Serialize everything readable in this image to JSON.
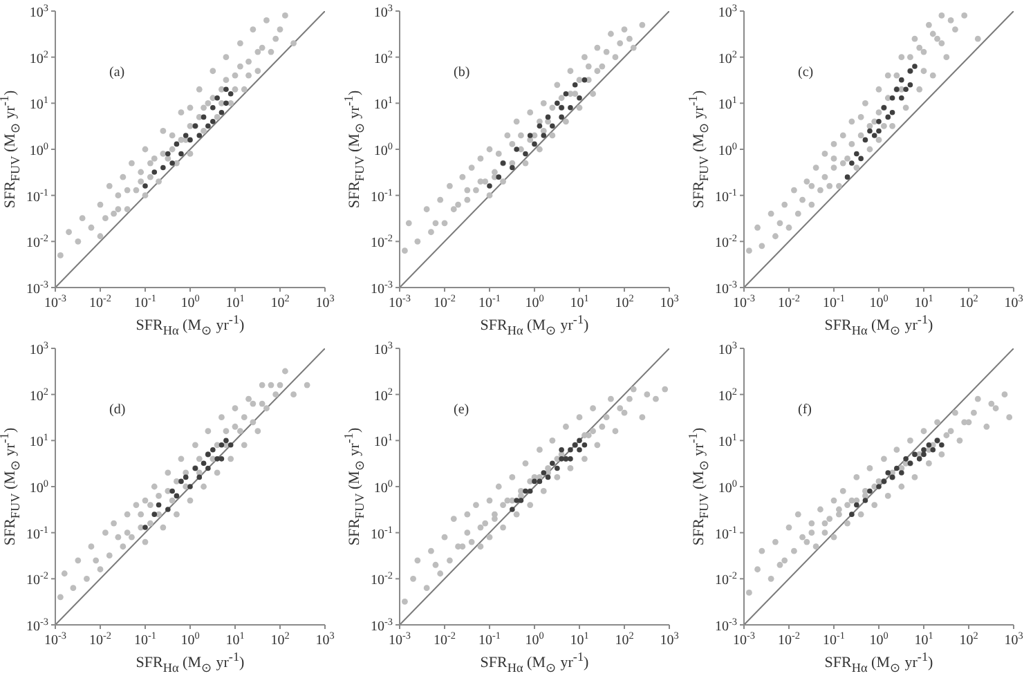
{
  "chart_data": [
    {
      "type": "scatter",
      "xlabel": "SFR$_{Hα}$ (M$_{⊙}$ yr$^{-1}$)",
      "ylabel": "SFR$_{FUV}$ (M$_{⊙}$ yr$^{-1}$)",
      "annotations": [
        "(a)"
      ],
      "log": "xy",
      "xlim": [
        0.001,
        1000
      ],
      "ylim": [
        0.001,
        1000
      ],
      "xticks": [
        {
          "value": 0.001,
          "label": "10$^{-3}$"
        },
        {
          "value": 0.01,
          "label": "10$^{-2}$"
        },
        {
          "value": 0.1,
          "label": "10$^{-1}$"
        },
        {
          "value": 1,
          "label": "10$^{0}$"
        },
        {
          "value": 10,
          "label": "10$^{1}$"
        },
        {
          "value": 100,
          "label": "10$^{2}$"
        },
        {
          "value": 1000,
          "label": "10$^{3}$"
        }
      ],
      "yticks": [
        {
          "value": 0.001,
          "label": "10$^{-3}$"
        },
        {
          "value": 0.01,
          "label": "10$^{-2}$"
        },
        {
          "value": 0.1,
          "label": "10$^{-1}$"
        },
        {
          "value": 1,
          "label": "10$^{0}$"
        },
        {
          "value": 10,
          "label": "10$^{1}$"
        },
        {
          "value": 100,
          "label": "10$^{2}$"
        },
        {
          "value": 1000,
          "label": "10$^{3}$"
        }
      ],
      "marker": "circle",
      "line_style": "solid",
      "series": [
        {
          "color": "#bdbdbd",
          "x": [
            0.0013,
            0.002,
            0.0032,
            0.004,
            0.0063,
            0.01,
            0.01,
            0.016,
            0.02,
            0.025,
            0.032,
            0.04,
            0.05,
            0.063,
            0.08,
            0.1,
            0.1,
            0.13,
            0.16,
            0.2,
            0.25,
            0.32,
            0.4,
            0.5,
            0.63,
            0.8,
            1,
            1,
            1.3,
            1.6,
            2,
            2.5,
            3.2,
            4,
            5,
            6.3,
            8,
            10,
            13,
            16,
            20,
            25,
            32,
            40,
            50,
            80,
            130,
            200,
            0.013,
            0.025,
            0.04,
            0.08,
            0.13,
            0.25,
            0.4,
            0.63,
            1,
            1.6,
            2,
            3.2,
            5,
            6.3,
            10,
            13,
            20,
            32,
            63,
            100
          ],
          "values": [
            0.005,
            0.016,
            0.01,
            0.032,
            0.02,
            0.063,
            0.013,
            0.16,
            0.04,
            0.1,
            0.25,
            0.05,
            0.5,
            0.13,
            0.32,
            0.1,
            1,
            0.25,
            0.63,
            0.2,
            2.5,
            0.63,
            2,
            0.5,
            6.3,
            1.6,
            8,
            0.8,
            3.2,
            20,
            2.5,
            10,
            50,
            5,
            20,
            100,
            10,
            40,
            200,
            20,
            80,
            400,
            50,
            160,
            630,
            250,
            800,
            200,
            0.032,
            0.05,
            0.13,
            0.2,
            0.5,
            0.8,
            1,
            1.6,
            3.2,
            5,
            8,
            13,
            10,
            32,
            20,
            63,
            40,
            130,
            130,
            400
          ]
        },
        {
          "color": "#3f3f3f",
          "x": [
            0.1,
            0.16,
            0.25,
            0.32,
            0.4,
            0.5,
            0.63,
            0.8,
            1,
            1.3,
            1.6,
            2,
            2.5,
            3.2,
            3.2,
            4,
            5,
            6.3,
            6.3,
            8
          ],
          "values": [
            0.16,
            0.32,
            0.4,
            0.8,
            0.5,
            1.3,
            0.8,
            2,
            1.6,
            3.2,
            2,
            5,
            3.2,
            8,
            4,
            13,
            6.3,
            20,
            10,
            16
          ]
        },
        {
          "type": "line",
          "marker": "none",
          "color": "#7a7a7a",
          "x": [
            0.001,
            1000
          ],
          "values": [
            0.001,
            1000
          ]
        }
      ]
    },
    {
      "type": "scatter",
      "xlabel": "SFR$_{Hα}$ (M$_{⊙}$ yr$^{-1}$)",
      "ylabel": "SFR$_{FUV}$ (M$_{⊙}$ yr$^{-1}$)",
      "annotations": [
        "(b)"
      ],
      "log": "xy",
      "xlim": [
        0.001,
        1000
      ],
      "ylim": [
        0.001,
        1000
      ],
      "xticks": [
        {
          "value": 0.001,
          "label": "10$^{-3}$"
        },
        {
          "value": 0.01,
          "label": "10$^{-2}$"
        },
        {
          "value": 0.1,
          "label": "10$^{-1}$"
        },
        {
          "value": 1,
          "label": "10$^{0}$"
        },
        {
          "value": 10,
          "label": "10$^{1}$"
        },
        {
          "value": 100,
          "label": "10$^{2}$"
        },
        {
          "value": 1000,
          "label": "10$^{3}$"
        }
      ],
      "yticks": [
        {
          "value": 0.001,
          "label": "10$^{-3}$"
        },
        {
          "value": 0.01,
          "label": "10$^{-2}$"
        },
        {
          "value": 0.1,
          "label": "10$^{-1}$"
        },
        {
          "value": 1,
          "label": "10$^{0}$"
        },
        {
          "value": 10,
          "label": "10$^{1}$"
        },
        {
          "value": 100,
          "label": "10$^{2}$"
        },
        {
          "value": 1000,
          "label": "10$^{3}$"
        }
      ],
      "marker": "circle",
      "line_style": "solid",
      "series": [
        {
          "color": "#bdbdbd",
          "x": [
            0.0013,
            0.0016,
            0.0025,
            0.004,
            0.005,
            0.008,
            0.01,
            0.013,
            0.016,
            0.025,
            0.032,
            0.04,
            0.05,
            0.063,
            0.08,
            0.1,
            0.1,
            0.13,
            0.16,
            0.2,
            0.25,
            0.32,
            0.4,
            0.5,
            0.63,
            0.8,
            1,
            1.3,
            1.6,
            2,
            2.5,
            3.2,
            4,
            5,
            6.3,
            8,
            10,
            13,
            16,
            20,
            25,
            32,
            50,
            63,
            100,
            160,
            250,
            0.0063,
            0.02,
            0.032,
            0.063,
            0.13,
            0.2,
            0.32,
            0.5,
            0.8,
            1.3,
            1.6,
            2.5,
            4,
            6.3,
            10,
            16,
            25,
            40,
            80,
            130
          ],
          "values": [
            0.0063,
            0.025,
            0.01,
            0.05,
            0.016,
            0.08,
            0.025,
            0.16,
            0.05,
            0.25,
            0.08,
            0.4,
            0.13,
            0.63,
            0.2,
            0.1,
            1,
            0.32,
            0.8,
            0.2,
            2,
            0.5,
            4,
            1,
            0.5,
            6.3,
            2,
            1,
            10,
            4,
            2,
            25,
            8,
            4,
            50,
            16,
            8,
            100,
            32,
            16,
            160,
            63,
            320,
            100,
            400,
            160,
            500,
            0.025,
            0.063,
            0.13,
            0.2,
            0.25,
            0.5,
            1.3,
            2,
            1.6,
            4,
            2.5,
            8,
            13,
            16,
            32,
            63,
            50,
            130,
            200,
            250
          ]
        },
        {
          "color": "#3f3f3f",
          "x": [
            0.1,
            0.16,
            0.2,
            0.32,
            0.4,
            0.63,
            0.8,
            1,
            1.3,
            1.6,
            2,
            2.5,
            3.2,
            4,
            5,
            6.3,
            8,
            10,
            13,
            4
          ],
          "values": [
            0.16,
            0.25,
            0.5,
            0.4,
            1,
            0.8,
            2,
            1.3,
            3.2,
            2,
            5,
            3.2,
            10,
            5,
            16,
            8,
            25,
            13,
            32,
            8
          ]
        },
        {
          "type": "line",
          "marker": "none",
          "color": "#7a7a7a",
          "x": [
            0.001,
            1000
          ],
          "values": [
            0.001,
            1000
          ]
        }
      ]
    },
    {
      "type": "scatter",
      "xlabel": "SFR$_{Hα}$ (M$_{⊙}$ yr$^{-1}$)",
      "ylabel": "SFR$_{FUV}$ (M$_{⊙}$ yr$^{-1}$)",
      "annotations": [
        "(c)"
      ],
      "log": "xy",
      "xlim": [
        0.001,
        1000
      ],
      "ylim": [
        0.001,
        1000
      ],
      "xticks": [
        {
          "value": 0.001,
          "label": "10$^{-3}$"
        },
        {
          "value": 0.01,
          "label": "10$^{-2}$"
        },
        {
          "value": 0.1,
          "label": "10$^{-1}$"
        },
        {
          "value": 1,
          "label": "10$^{0}$"
        },
        {
          "value": 10,
          "label": "10$^{1}$"
        },
        {
          "value": 100,
          "label": "10$^{2}$"
        },
        {
          "value": 1000,
          "label": "10$^{3}$"
        }
      ],
      "yticks": [
        {
          "value": 0.001,
          "label": "10$^{-3}$"
        },
        {
          "value": 0.01,
          "label": "10$^{-2}$"
        },
        {
          "value": 0.1,
          "label": "10$^{-1}$"
        },
        {
          "value": 1,
          "label": "10$^{0}$"
        },
        {
          "value": 10,
          "label": "10$^{1}$"
        },
        {
          "value": 100,
          "label": "10$^{2}$"
        },
        {
          "value": 1000,
          "label": "10$^{3}$"
        }
      ],
      "marker": "circle",
      "line_style": "solid",
      "series": [
        {
          "color": "#bdbdbd",
          "x": [
            0.0013,
            0.002,
            0.0025,
            0.004,
            0.005,
            0.008,
            0.01,
            0.013,
            0.016,
            0.025,
            0.032,
            0.04,
            0.05,
            0.063,
            0.08,
            0.1,
            0.1,
            0.13,
            0.16,
            0.2,
            0.25,
            0.32,
            0.4,
            0.5,
            0.63,
            0.8,
            1,
            1,
            1.3,
            1.6,
            2,
            2.5,
            3.2,
            4,
            5,
            6.3,
            8,
            10,
            13,
            16,
            20,
            25,
            32,
            50,
            80,
            160,
            0.0063,
            0.02,
            0.032,
            0.063,
            0.1,
            0.16,
            0.25,
            0.4,
            0.63,
            1,
            1.3,
            1.6,
            2.5,
            3.2,
            5,
            8,
            10,
            16,
            25,
            40
          ],
          "values": [
            0.0063,
            0.02,
            0.008,
            0.04,
            0.013,
            0.063,
            0.02,
            0.13,
            0.04,
            0.2,
            0.063,
            0.4,
            0.13,
            0.8,
            0.16,
            0.4,
            1.3,
            0.16,
            2,
            0.63,
            4,
            0.4,
            2,
            10,
            1,
            4,
            20,
            1.6,
            8,
            40,
            3.2,
            20,
            100,
            8,
            50,
            250,
            20,
            130,
            500,
            40,
            250,
            800,
            100,
            400,
            800,
            250,
            0.025,
            0.08,
            0.16,
            0.25,
            0.63,
            0.5,
            1.3,
            5,
            3.2,
            6.3,
            3.2,
            13,
            40,
            20,
            100,
            160,
            50,
            320,
            200,
            630
          ]
        },
        {
          "color": "#3f3f3f",
          "x": [
            0.2,
            0.25,
            0.32,
            0.4,
            0.5,
            0.63,
            0.8,
            1,
            1,
            1.3,
            1.6,
            2,
            2,
            2.5,
            3.2,
            3.2,
            4,
            5,
            5,
            6.3
          ],
          "values": [
            0.25,
            0.5,
            0.8,
            0.63,
            1.6,
            2.5,
            2,
            4,
            2.5,
            8,
            5,
            13,
            6.3,
            20,
            13,
            32,
            20,
            50,
            25,
            63
          ]
        },
        {
          "type": "line",
          "marker": "none",
          "color": "#7a7a7a",
          "x": [
            0.001,
            1000
          ],
          "values": [
            0.001,
            1000
          ]
        }
      ]
    },
    {
      "type": "scatter",
      "xlabel": "SFR$_{Hα}$ (M$_{⊙}$ yr$^{-1}$)",
      "ylabel": "SFR$_{FUV}$ (M$_{⊙}$ yr$^{-1}$)",
      "annotations": [
        "(d)"
      ],
      "log": "xy",
      "xlim": [
        0.001,
        1000
      ],
      "ylim": [
        0.001,
        1000
      ],
      "xticks": [
        {
          "value": 0.001,
          "label": "10$^{-3}$"
        },
        {
          "value": 0.01,
          "label": "10$^{-2}$"
        },
        {
          "value": 0.1,
          "label": "10$^{-1}$"
        },
        {
          "value": 1,
          "label": "10$^{0}$"
        },
        {
          "value": 10,
          "label": "10$^{1}$"
        },
        {
          "value": 100,
          "label": "10$^{2}$"
        },
        {
          "value": 1000,
          "label": "10$^{3}$"
        }
      ],
      "yticks": [
        {
          "value": 0.001,
          "label": "10$^{-3}$"
        },
        {
          "value": 0.01,
          "label": "10$^{-2}$"
        },
        {
          "value": 0.1,
          "label": "10$^{-1}$"
        },
        {
          "value": 1,
          "label": "10$^{0}$"
        },
        {
          "value": 10,
          "label": "10$^{1}$"
        },
        {
          "value": 100,
          "label": "10$^{2}$"
        },
        {
          "value": 1000,
          "label": "10$^{3}$"
        }
      ],
      "marker": "circle",
      "line_style": "solid",
      "series": [
        {
          "color": "#bdbdbd",
          "x": [
            0.0013,
            0.0016,
            0.0025,
            0.0032,
            0.005,
            0.0063,
            0.01,
            0.013,
            0.016,
            0.02,
            0.032,
            0.04,
            0.05,
            0.063,
            0.08,
            0.1,
            0.1,
            0.13,
            0.16,
            0.2,
            0.25,
            0.32,
            0.4,
            0.5,
            0.63,
            0.8,
            1,
            1.3,
            1.6,
            2,
            2.5,
            3.2,
            4,
            5,
            6.3,
            8,
            10,
            13,
            16,
            20,
            25,
            32,
            40,
            50,
            80,
            130,
            200,
            400,
            0.008,
            0.025,
            0.04,
            0.08,
            0.13,
            0.2,
            0.32,
            0.5,
            0.8,
            1.3,
            1.6,
            2.5,
            4,
            6.3,
            10,
            16,
            25,
            40,
            63,
            100
          ],
          "values": [
            0.004,
            0.013,
            0.0063,
            0.025,
            0.01,
            0.05,
            0.016,
            0.1,
            0.032,
            0.16,
            0.05,
            0.25,
            0.08,
            0.4,
            0.13,
            0.063,
            0.5,
            0.16,
            1,
            0.25,
            0.13,
            2,
            0.5,
            0.25,
            4,
            1,
            0.5,
            8,
            2,
            1,
            16,
            4,
            2,
            32,
            8,
            4,
            50,
            16,
            8,
            80,
            25,
            16,
            160,
            50,
            100,
            320,
            100,
            160,
            0.025,
            0.08,
            0.1,
            0.25,
            0.4,
            0.63,
            0.8,
            1.3,
            2,
            2.5,
            4,
            5,
            8,
            16,
            20,
            32,
            63,
            63,
            160,
            160
          ]
        },
        {
          "color": "#3f3f3f",
          "x": [
            0.1,
            0.16,
            0.2,
            0.32,
            0.4,
            0.5,
            0.63,
            0.8,
            1,
            1.3,
            1.6,
            2,
            2.5,
            3.2,
            4,
            5,
            5,
            6.3,
            8,
            2.5
          ],
          "values": [
            0.13,
            0.25,
            0.4,
            0.32,
            0.8,
            0.63,
            1.3,
            1.6,
            1,
            2.5,
            1.6,
            3.2,
            2.5,
            6.3,
            4,
            8,
            4,
            10,
            8,
            5
          ]
        },
        {
          "type": "line",
          "marker": "none",
          "color": "#7a7a7a",
          "x": [
            0.001,
            1000
          ],
          "values": [
            0.001,
            1000
          ]
        }
      ]
    },
    {
      "type": "scatter",
      "xlabel": "SFR$_{Hα}$ (M$_{⊙}$ yr$^{-1}$)",
      "ylabel": "SFR$_{FUV}$ (M$_{⊙}$ yr$^{-1}$)",
      "annotations": [
        "(e)"
      ],
      "log": "xy",
      "xlim": [
        0.001,
        1000
      ],
      "ylim": [
        0.001,
        1000
      ],
      "xticks": [
        {
          "value": 0.001,
          "label": "10$^{-3}$"
        },
        {
          "value": 0.01,
          "label": "10$^{-2}$"
        },
        {
          "value": 0.1,
          "label": "10$^{-1}$"
        },
        {
          "value": 1,
          "label": "10$^{0}$"
        },
        {
          "value": 10,
          "label": "10$^{1}$"
        },
        {
          "value": 100,
          "label": "10$^{2}$"
        },
        {
          "value": 1000,
          "label": "10$^{3}$"
        }
      ],
      "yticks": [
        {
          "value": 0.001,
          "label": "10$^{-3}$"
        },
        {
          "value": 0.01,
          "label": "10$^{-2}$"
        },
        {
          "value": 0.1,
          "label": "10$^{-1}$"
        },
        {
          "value": 1,
          "label": "10$^{0}$"
        },
        {
          "value": 10,
          "label": "10$^{1}$"
        },
        {
          "value": 100,
          "label": "10$^{2}$"
        },
        {
          "value": 1000,
          "label": "10$^{3}$"
        }
      ],
      "marker": "circle",
      "line_style": "solid",
      "series": [
        {
          "color": "#bdbdbd",
          "x": [
            0.0013,
            0.002,
            0.0025,
            0.004,
            0.005,
            0.008,
            0.01,
            0.013,
            0.016,
            0.025,
            0.032,
            0.04,
            0.05,
            0.063,
            0.08,
            0.1,
            0.1,
            0.13,
            0.16,
            0.2,
            0.25,
            0.32,
            0.4,
            0.5,
            0.63,
            0.8,
            1,
            1.3,
            1.6,
            2,
            2.5,
            3.2,
            4,
            5,
            6.3,
            8,
            10,
            13,
            16,
            20,
            25,
            32,
            50,
            63,
            100,
            160,
            250,
            500,
            800,
            0.0063,
            0.02,
            0.032,
            0.063,
            0.13,
            0.2,
            0.32,
            0.5,
            0.8,
            1.3,
            2,
            3.2,
            5,
            8,
            13,
            20,
            40,
            80,
            130,
            320
          ],
          "values": [
            0.0032,
            0.01,
            0.025,
            0.0063,
            0.04,
            0.013,
            0.08,
            0.025,
            0.2,
            0.05,
            0.25,
            0.063,
            0.4,
            0.05,
            0.16,
            0.5,
            0.08,
            0.25,
            1,
            0.13,
            0.5,
            1.6,
            0.25,
            0.8,
            3.2,
            0.4,
            1.6,
            6.3,
            0.8,
            2.5,
            10,
            1.6,
            5,
            20,
            2.5,
            8,
            32,
            4,
            13,
            50,
            8,
            20,
            80,
            16,
            40,
            130,
            32,
            80,
            130,
            0.02,
            0.05,
            0.1,
            0.13,
            0.2,
            0.4,
            0.5,
            0.63,
            1.3,
            1.6,
            2,
            4,
            4,
            8,
            13,
            16,
            32,
            50,
            80,
            100
          ]
        },
        {
          "color": "#3f3f3f",
          "x": [
            0.32,
            0.4,
            0.5,
            0.63,
            0.8,
            1,
            1.3,
            1.6,
            2,
            2.5,
            3.2,
            4,
            4,
            5,
            6.3,
            6.3,
            8,
            10,
            10,
            13
          ],
          "values": [
            0.32,
            0.5,
            0.5,
            0.8,
            0.8,
            1.3,
            1.3,
            2,
            1.6,
            3.2,
            2.5,
            4,
            6.3,
            4,
            6.3,
            4,
            8,
            6.3,
            10,
            8
          ]
        },
        {
          "type": "line",
          "marker": "none",
          "color": "#7a7a7a",
          "x": [
            0.001,
            1000
          ],
          "values": [
            0.001,
            1000
          ]
        }
      ]
    },
    {
      "type": "scatter",
      "xlabel": "SFR$_{Hα}$ (M$_{⊙}$ yr$^{-1}$)",
      "ylabel": "SFR$_{FUV}$ (M$_{⊙}$ yr$^{-1}$)",
      "annotations": [
        "(f)"
      ],
      "log": "xy",
      "xlim": [
        0.001,
        1000
      ],
      "ylim": [
        0.001,
        1000
      ],
      "xticks": [
        {
          "value": 0.001,
          "label": "10$^{-3}$"
        },
        {
          "value": 0.01,
          "label": "10$^{-2}$"
        },
        {
          "value": 0.1,
          "label": "10$^{-1}$"
        },
        {
          "value": 1,
          "label": "10$^{0}$"
        },
        {
          "value": 10,
          "label": "10$^{1}$"
        },
        {
          "value": 100,
          "label": "10$^{2}$"
        },
        {
          "value": 1000,
          "label": "10$^{3}$"
        }
      ],
      "yticks": [
        {
          "value": 0.001,
          "label": "10$^{-3}$"
        },
        {
          "value": 0.01,
          "label": "10$^{-2}$"
        },
        {
          "value": 0.1,
          "label": "10$^{-1}$"
        },
        {
          "value": 1,
          "label": "10$^{0}$"
        },
        {
          "value": 10,
          "label": "10$^{1}$"
        },
        {
          "value": 100,
          "label": "10$^{2}$"
        },
        {
          "value": 1000,
          "label": "10$^{3}$"
        }
      ],
      "marker": "circle",
      "line_style": "solid",
      "series": [
        {
          "color": "#bdbdbd",
          "x": [
            0.0013,
            0.002,
            0.0025,
            0.004,
            0.005,
            0.008,
            0.01,
            0.013,
            0.016,
            0.025,
            0.032,
            0.04,
            0.05,
            0.063,
            0.08,
            0.1,
            0.1,
            0.13,
            0.16,
            0.2,
            0.25,
            0.32,
            0.4,
            0.5,
            0.63,
            0.8,
            1,
            1.3,
            1.6,
            2,
            2.5,
            3.2,
            4,
            5,
            6.3,
            8,
            10,
            13,
            16,
            20,
            25,
            32,
            50,
            63,
            100,
            160,
            250,
            400,
            630,
            800,
            0.0063,
            0.02,
            0.032,
            0.063,
            0.13,
            0.2,
            0.32,
            0.5,
            0.8,
            1.3,
            2,
            3.2,
            5,
            8,
            13,
            20,
            40,
            80,
            130,
            320
          ],
          "values": [
            0.005,
            0.016,
            0.04,
            0.01,
            0.063,
            0.025,
            0.13,
            0.04,
            0.25,
            0.063,
            0.16,
            0.05,
            0.32,
            0.1,
            0.2,
            0.5,
            0.08,
            0.32,
            0.8,
            0.16,
            0.5,
            1.6,
            0.25,
            0.8,
            2.5,
            0.4,
            1.3,
            4,
            0.63,
            2,
            6.3,
            1,
            3.2,
            10,
            1.6,
            5,
            16,
            3.2,
            8,
            25,
            5,
            13,
            40,
            10,
            25,
            80,
            20,
            50,
            100,
            32,
            0.02,
            0.08,
            0.1,
            0.16,
            0.25,
            0.4,
            0.5,
            0.63,
            1,
            1.3,
            1.6,
            2.5,
            3.2,
            5,
            6.3,
            10,
            16,
            25,
            40,
            63
          ]
        },
        {
          "color": "#3f3f3f",
          "x": [
            0.25,
            0.32,
            0.5,
            0.63,
            1,
            1.3,
            1.6,
            2,
            2.5,
            3.2,
            4,
            5,
            6.3,
            8,
            10,
            10,
            13,
            16,
            20,
            25
          ],
          "values": [
            0.25,
            0.4,
            0.5,
            0.8,
            1,
            1.3,
            2,
            1.6,
            2.5,
            2,
            4,
            3.2,
            5,
            4,
            6.3,
            5,
            8,
            6.3,
            10,
            8
          ]
        },
        {
          "type": "line",
          "marker": "none",
          "color": "#7a7a7a",
          "x": [
            0.001,
            1000
          ],
          "values": [
            0.001,
            1000
          ]
        }
      ]
    }
  ]
}
